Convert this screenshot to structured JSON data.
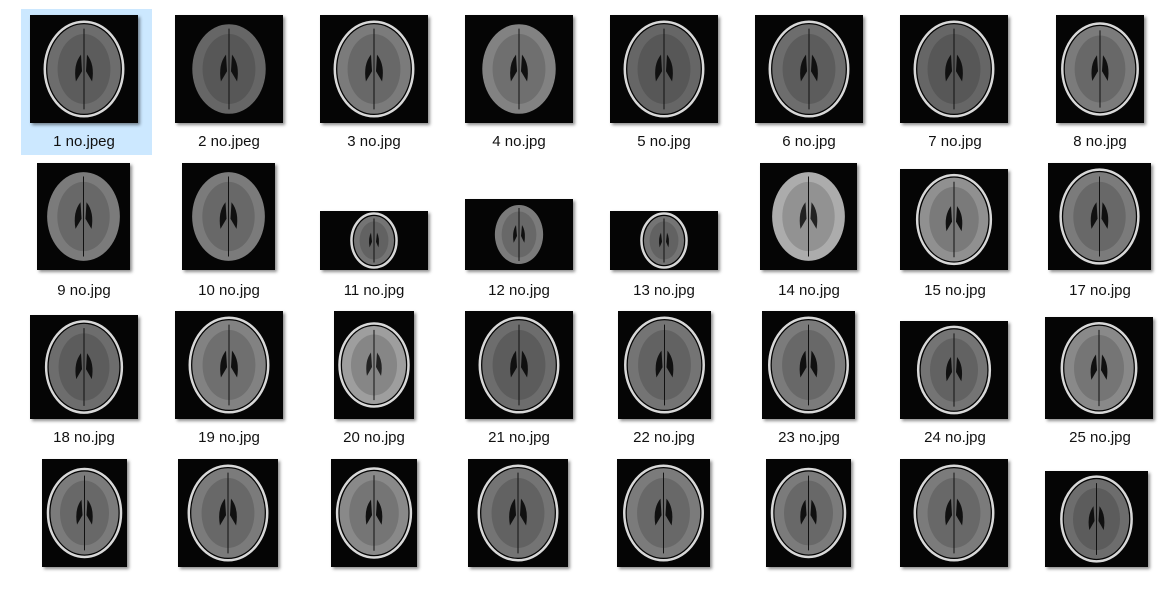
{
  "files": [
    {
      "name": "1 no.jpeg",
      "selected": true
    },
    {
      "name": "2 no.jpeg"
    },
    {
      "name": "3 no.jpg"
    },
    {
      "name": "4 no.jpg"
    },
    {
      "name": "5 no.jpg"
    },
    {
      "name": "6 no.jpg"
    },
    {
      "name": "7 no.jpg"
    },
    {
      "name": "8 no.jpg"
    },
    {
      "name": "9 no.jpg"
    },
    {
      "name": "10 no.jpg"
    },
    {
      "name": "11 no.jpg"
    },
    {
      "name": "12 no.jpg"
    },
    {
      "name": "13 no.jpg"
    },
    {
      "name": "14 no.jpg"
    },
    {
      "name": "15 no.jpg"
    },
    {
      "name": "17 no.jpg"
    },
    {
      "name": "18 no.jpg"
    },
    {
      "name": "19 no.jpg"
    },
    {
      "name": "20 no.jpg"
    },
    {
      "name": "21 no.jpg"
    },
    {
      "name": "22 no.jpg"
    },
    {
      "name": "23 no.jpg"
    },
    {
      "name": "24 no.jpg"
    },
    {
      "name": "25 no.jpg"
    },
    {
      "name": ""
    },
    {
      "name": ""
    },
    {
      "name": ""
    },
    {
      "name": ""
    },
    {
      "name": ""
    },
    {
      "name": ""
    },
    {
      "name": ""
    },
    {
      "name": ""
    }
  ]
}
